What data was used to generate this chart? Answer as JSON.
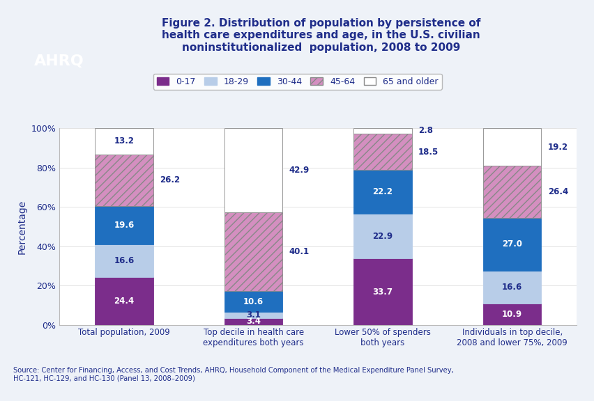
{
  "title": "Figure 2. Distribution of population by persistence of\nhealth care expenditures and age, in the U.S. civilian\nnoninstitutionalized  population, 2008 to 2009",
  "title_color": "#1F2D8A",
  "ylabel": "Percentage",
  "categories": [
    "Total population, 2009",
    "Top decile in health care\nexpenditures both years",
    "Lower 50% of spenders\nboth years",
    "Individuals in top decile,\n2008 and lower 75%, 2009"
  ],
  "series_labels": [
    "0-17",
    "18-29",
    "30-44",
    "45-64",
    "65 and older"
  ],
  "series_colors": [
    "#7B2D8B",
    "#B8CDE8",
    "#1F6FBF",
    "#D48FC0",
    "#FFFFFF"
  ],
  "series_edge_colors": [
    "#7B2D8B",
    "#B8CDE8",
    "#1F6FBF",
    "#888888",
    "#888888"
  ],
  "series_hatch": [
    null,
    null,
    null,
    "///",
    null
  ],
  "data": {
    "0-17": [
      24.4,
      3.4,
      33.7,
      10.9
    ],
    "18-29": [
      16.6,
      3.1,
      22.9,
      16.6
    ],
    "30-44": [
      19.6,
      10.6,
      22.2,
      27.0
    ],
    "45-64": [
      26.2,
      40.1,
      18.5,
      26.4
    ],
    "65 and older": [
      13.2,
      42.9,
      2.8,
      19.2
    ]
  },
  "bar_width": 0.45,
  "source_text": "Source: Center for Financing, Access, and Cost Trends, AHRQ, Household Component of the Medical Expenditure Panel Survey,\nHC-121, HC-129, and HC-130 (Panel 13, 2008–2009)",
  "background_color": "#EEF2F8",
  "plot_bg_color": "#FFFFFF",
  "border_color": "#1F2D8A",
  "ylim": [
    0,
    100
  ],
  "yticks": [
    0,
    20,
    40,
    60,
    80,
    100
  ],
  "ytick_labels": [
    "0%",
    "20%",
    "40%",
    "60%",
    "80%",
    "100%"
  ],
  "label_color_white": "#FFFFFF",
  "label_color_dark": "#1F2D8A",
  "outside_labels": [
    {
      "bar_idx": 0,
      "seg": "45-64",
      "val": 26.2
    },
    {
      "bar_idx": 1,
      "seg": "45-64",
      "val": 40.1
    },
    {
      "bar_idx": 1,
      "seg": "65 and older",
      "val": 42.9
    },
    {
      "bar_idx": 2,
      "seg": "45-64",
      "val": 18.5
    },
    {
      "bar_idx": 2,
      "seg": "65 and older",
      "val": 2.8
    },
    {
      "bar_idx": 3,
      "seg": "45-64",
      "val": 26.4
    },
    {
      "bar_idx": 3,
      "seg": "65 and older",
      "val": 19.2
    }
  ]
}
